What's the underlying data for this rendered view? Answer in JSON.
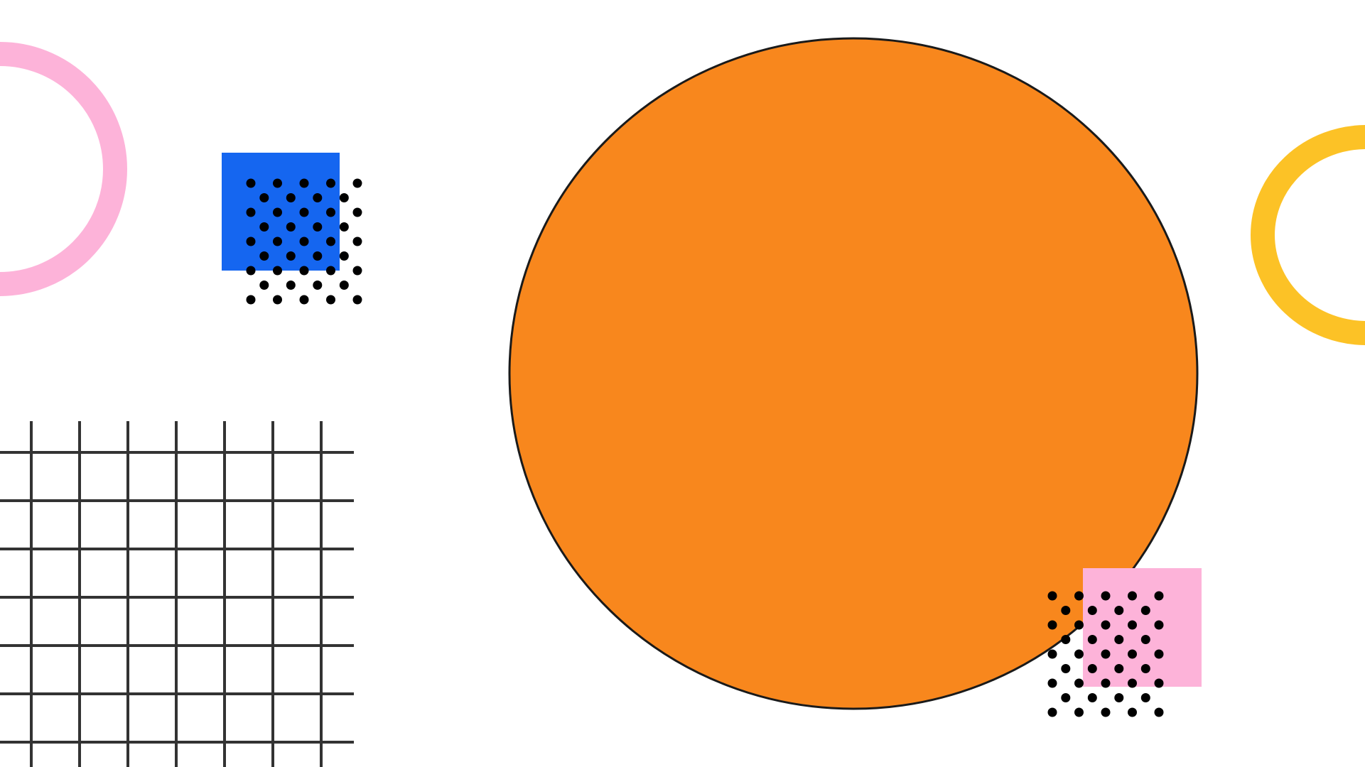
{
  "scene": {
    "background": "#ffffff",
    "elements": [
      {
        "name": "pink-ring",
        "shape": "ring",
        "color": "#fdb3d9"
      },
      {
        "name": "blue-square",
        "shape": "square",
        "color": "#1566f0"
      },
      {
        "name": "dot-pattern-top",
        "shape": "dot-grid",
        "color": "#000000"
      },
      {
        "name": "grid-pattern",
        "shape": "line-grid",
        "color": "#333333"
      },
      {
        "name": "orange-circle",
        "shape": "circle",
        "color": "#f8871d",
        "outline": "#1a1a1a"
      },
      {
        "name": "pink-square",
        "shape": "square",
        "color": "#fdb3d9"
      },
      {
        "name": "dot-pattern-bottom",
        "shape": "dot-grid",
        "color": "#000000"
      },
      {
        "name": "yellow-ring",
        "shape": "ring",
        "color": "#fcc226"
      }
    ]
  }
}
